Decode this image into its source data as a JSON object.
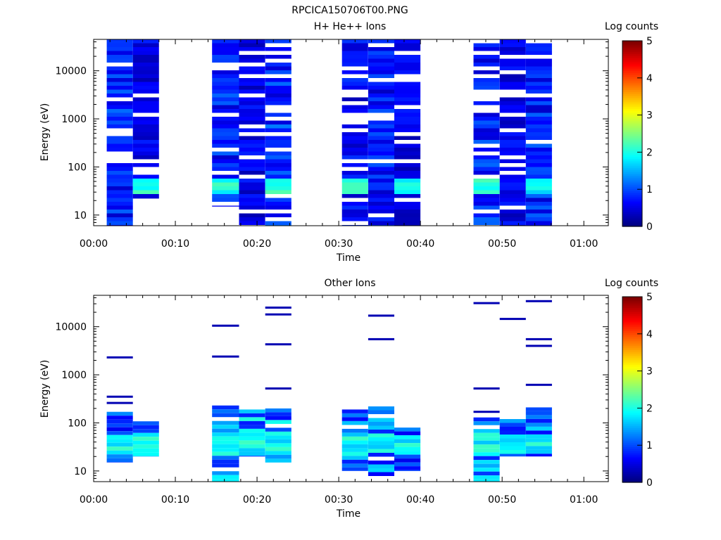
{
  "figure": {
    "filename": "RPCICA150706T00.PNG"
  },
  "colorbar": {
    "label": "Log counts",
    "ticks": [
      "0",
      "1",
      "2",
      "3",
      "4",
      "5"
    ],
    "range": [
      0,
      5
    ],
    "colormap": "jet"
  },
  "chart_data": [
    {
      "type": "heatmap",
      "title": "H+ He++ Ions",
      "xlabel": "Time",
      "ylabel": "Energy (eV)",
      "x_ticks": [
        "00:00",
        "00:10",
        "00:20",
        "00:30",
        "00:40",
        "00:50",
        "01:00"
      ],
      "y_ticks": [
        "10",
        "100",
        "1000",
        "10000"
      ],
      "y_scale": "log",
      "ylim": [
        6,
        45000
      ],
      "xlim_minutes": [
        0,
        63
      ],
      "columns": [
        {
          "t0": 1.6,
          "t1": 4.8,
          "emin": 6,
          "emax": 45000,
          "level": 0.9
        },
        {
          "t0": 4.8,
          "t1": 8.0,
          "emin": 22,
          "emax": 45000,
          "level": 0.6
        },
        {
          "t0": 14.5,
          "t1": 17.8,
          "emin": 15,
          "emax": 45000,
          "level": 0.9
        },
        {
          "t0": 17.8,
          "t1": 21.0,
          "emin": 6,
          "emax": 45000,
          "level": 0.6
        },
        {
          "t0": 21.0,
          "t1": 24.2,
          "emin": 6,
          "emax": 45000,
          "level": 1.0
        },
        {
          "t0": 30.4,
          "t1": 33.6,
          "emin": 6,
          "emax": 45000,
          "level": 0.7
        },
        {
          "t0": 33.6,
          "t1": 36.8,
          "emin": 6,
          "emax": 45000,
          "level": 0.8
        },
        {
          "t0": 36.8,
          "t1": 40.0,
          "emin": 6,
          "emax": 45000,
          "level": 0.6
        },
        {
          "t0": 46.5,
          "t1": 49.7,
          "emin": 6,
          "emax": 45000,
          "level": 0.9
        },
        {
          "t0": 49.7,
          "t1": 52.9,
          "emin": 6,
          "emax": 45000,
          "level": 0.6
        },
        {
          "t0": 52.9,
          "t1": 56.1,
          "emin": 6,
          "emax": 45000,
          "level": 0.9
        }
      ],
      "peak": {
        "energy_range": [
          25,
          60
        ],
        "level": 2.2
      }
    },
    {
      "type": "heatmap",
      "title": "Other Ions",
      "xlabel": "Time",
      "ylabel": "Energy (eV)",
      "x_ticks": [
        "00:00",
        "00:10",
        "00:20",
        "00:30",
        "00:40",
        "00:50",
        "01:00"
      ],
      "y_ticks": [
        "10",
        "100",
        "1000",
        "10000"
      ],
      "y_scale": "log",
      "ylim": [
        6,
        45000
      ],
      "xlim_minutes": [
        0,
        63
      ],
      "columns": [
        {
          "t0": 1.6,
          "t1": 4.8,
          "emin": 15,
          "emax": 170,
          "level": 1.3,
          "lines": [
            2300,
            350,
            260
          ]
        },
        {
          "t0": 4.8,
          "t1": 8.0,
          "emin": 20,
          "emax": 130,
          "level": 1.3,
          "lines": []
        },
        {
          "t0": 14.5,
          "t1": 17.8,
          "emin": 6,
          "emax": 230,
          "level": 1.5,
          "lines": [
            10500,
            2400
          ]
        },
        {
          "t0": 17.8,
          "t1": 21.0,
          "emin": 20,
          "emax": 190,
          "level": 1.6,
          "lines": []
        },
        {
          "t0": 21.0,
          "t1": 24.2,
          "emin": 15,
          "emax": 200,
          "level": 1.6,
          "lines": [
            25000,
            18000,
            4300,
            520
          ]
        },
        {
          "t0": 30.4,
          "t1": 33.6,
          "emin": 10,
          "emax": 190,
          "level": 1.4,
          "lines": []
        },
        {
          "t0": 33.6,
          "t1": 36.8,
          "emin": 6,
          "emax": 220,
          "level": 1.4,
          "lines": [
            17000,
            5500
          ]
        },
        {
          "t0": 36.8,
          "t1": 40.0,
          "emin": 10,
          "emax": 80,
          "level": 1.3,
          "lines": []
        },
        {
          "t0": 46.5,
          "t1": 49.7,
          "emin": 6,
          "emax": 130,
          "level": 1.4,
          "lines": [
            31000,
            520,
            170
          ]
        },
        {
          "t0": 49.7,
          "t1": 52.9,
          "emin": 20,
          "emax": 120,
          "level": 1.4,
          "lines": [
            14500
          ]
        },
        {
          "t0": 52.9,
          "t1": 56.1,
          "emin": 20,
          "emax": 210,
          "level": 1.3,
          "lines": [
            34000,
            5500,
            4000,
            620
          ]
        }
      ],
      "peak": {
        "energy_range": [
          22,
          60
        ],
        "level": 2.1
      }
    }
  ]
}
